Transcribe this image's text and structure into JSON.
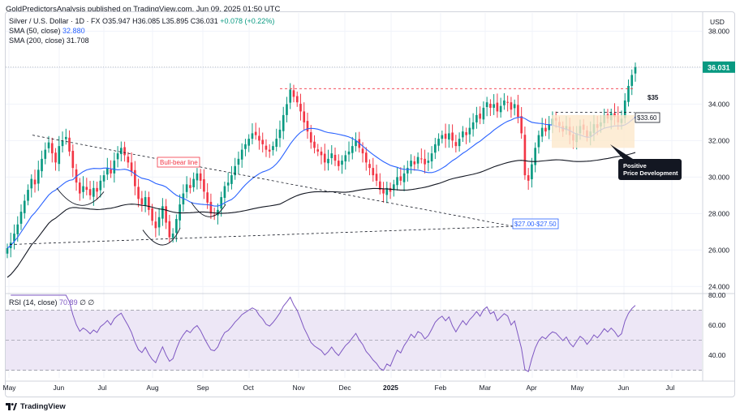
{
  "publisher_line": "GoldPredictorsAnalysis published on TradingView.com, Jun 09, 2025 01:50 UTC",
  "legend": {
    "symbol": "Silver / U.S. Dollar · 1D · FX",
    "open_label": "O",
    "open": "35.947",
    "high_label": "H",
    "high": "36.085",
    "low_label": "L",
    "low": "35.895",
    "close_label": "C",
    "close": "36.031",
    "change": "+0.078 (+0.22%)",
    "sma50_label": "SMA (50, close)",
    "sma50_value": "32.880",
    "sma200_label": "SMA (200, close)",
    "sma200_value": "31.708",
    "rsi_label": "RSI (14, close)",
    "rsi_value": "70.89",
    "rsi_extra": "∅ ∅"
  },
  "footer": {
    "brand": "TradingView"
  },
  "colors": {
    "up": "#089981",
    "down": "#f23645",
    "sma50": "#2962ff",
    "sma200": "#131722",
    "rsi": "#7e57c2",
    "rsi_band": "#ede7f6",
    "box": "#fde9cc",
    "red_dash": "#f23645"
  },
  "chart_data": {
    "type": "candlestick",
    "currency_label": "USD",
    "y_ticks": [
      "38.000",
      "36.000",
      "34.000",
      "32.000",
      "30.000",
      "28.000",
      "26.000",
      "24.000"
    ],
    "ylim": [
      23.7,
      39.0
    ],
    "x_ticks": [
      "May",
      "Jun",
      "Jul",
      "Aug",
      "Sep",
      "Oct",
      "Nov",
      "Dec",
      "2025",
      "Feb",
      "Mar",
      "Apr",
      "May",
      "Jun",
      "Jul"
    ],
    "last_price_label": "36.031",
    "close_series": [
      26.1,
      26.4,
      26.9,
      27.4,
      28.1,
      28.7,
      29.3,
      29.9,
      29.6,
      30.4,
      31.0,
      31.5,
      31.9,
      31.3,
      30.8,
      31.7,
      32.0,
      32.2,
      31.4,
      30.5,
      29.7,
      29.1,
      29.5,
      29.3,
      29.0,
      29.4,
      29.2,
      29.8,
      30.1,
      30.5,
      30.2,
      30.9,
      31.3,
      31.6,
      31.2,
      30.8,
      30.3,
      29.5,
      28.8,
      28.5,
      28.9,
      28.2,
      27.6,
      27.2,
      27.8,
      28.4,
      27.5,
      26.7,
      26.9,
      27.7,
      28.5,
      29.1,
      29.6,
      29.4,
      29.9,
      30.2,
      29.8,
      29.2,
      28.6,
      28.0,
      27.9,
      28.2,
      28.9,
      29.5,
      29.7,
      30.1,
      30.6,
      31.0,
      31.5,
      31.8,
      32.1,
      32.4,
      32.3,
      32.0,
      31.8,
      31.5,
      31.4,
      31.7,
      32.1,
      32.6,
      33.4,
      34.0,
      34.8,
      34.4,
      34.1,
      33.6,
      33.0,
      32.5,
      31.9,
      31.6,
      31.4,
      31.2,
      30.8,
      31.0,
      31.3,
      30.9,
      30.6,
      30.9,
      31.2,
      31.4,
      31.7,
      32.0,
      31.6,
      31.3,
      30.8,
      30.5,
      30.1,
      29.8,
      29.3,
      29.1,
      29.4,
      29.2,
      29.6,
      30.0,
      29.8,
      30.2,
      30.5,
      30.9,
      30.7,
      31.1,
      31.0,
      30.7,
      30.9,
      31.3,
      31.8,
      32.1,
      32.3,
      32.1,
      32.4,
      32.0,
      31.7,
      32.1,
      32.5,
      32.3,
      32.7,
      33.0,
      33.4,
      33.2,
      33.8,
      34.1,
      33.8,
      34.0,
      33.6,
      33.9,
      34.2,
      34.1,
      33.7,
      34.0,
      33.3,
      32.4,
      30.1,
      29.8,
      30.7,
      31.6,
      32.3,
      32.7,
      32.5,
      32.9,
      33.2,
      33.1,
      32.8,
      32.5,
      32.8,
      32.3,
      32.0,
      32.4,
      32.8,
      32.6,
      32.2,
      32.5,
      32.9,
      32.7,
      33.0,
      33.4,
      33.2,
      33.5,
      33.3,
      33.0,
      33.2,
      34.2,
      35.0,
      35.6,
      36.03
    ],
    "annotations": [
      "Bull-bear line",
      "$35",
      "$33.60",
      "$27.00-$27.50",
      "Positive\nPrice Development"
    ],
    "rsi": {
      "y_ticks": [
        "80.00",
        "60.00",
        "40.00"
      ],
      "ylim": [
        25,
        80
      ],
      "overbought": 70,
      "oversold": 30
    }
  }
}
